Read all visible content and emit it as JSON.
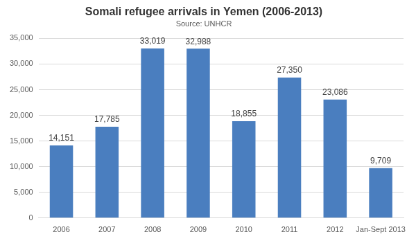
{
  "chart_data": {
    "type": "bar",
    "title": "Somali refugee arrivals in Yemen (2006-2013)",
    "subtitle": "Source: UNHCR",
    "categories": [
      "2006",
      "2007",
      "2008",
      "2009",
      "2010",
      "2011",
      "2012",
      "Jan-Sept 2013"
    ],
    "values": [
      14151,
      17785,
      33019,
      32988,
      18855,
      27350,
      23086,
      9709
    ],
    "value_labels": [
      "14,151",
      "17,785",
      "33,019",
      "32,988",
      "18,855",
      "27,350",
      "23,086",
      "9,709"
    ],
    "color": "#4a7ebf",
    "ylim": [
      0,
      35000
    ],
    "yticks": [
      0,
      {
        "value": 5000,
        "label": "5,000"
      },
      {
        "value": 10000,
        "label": "10,000"
      },
      {
        "value": 15000,
        "label": "15,000"
      },
      {
        "value": 20000,
        "label": "20,000"
      },
      {
        "value": 25000,
        "label": "25,000"
      },
      {
        "value": 30000,
        "label": "30,000"
      },
      {
        "value": 35000,
        "label": "35,000"
      }
    ],
    "grid": true,
    "data_labels": true
  }
}
